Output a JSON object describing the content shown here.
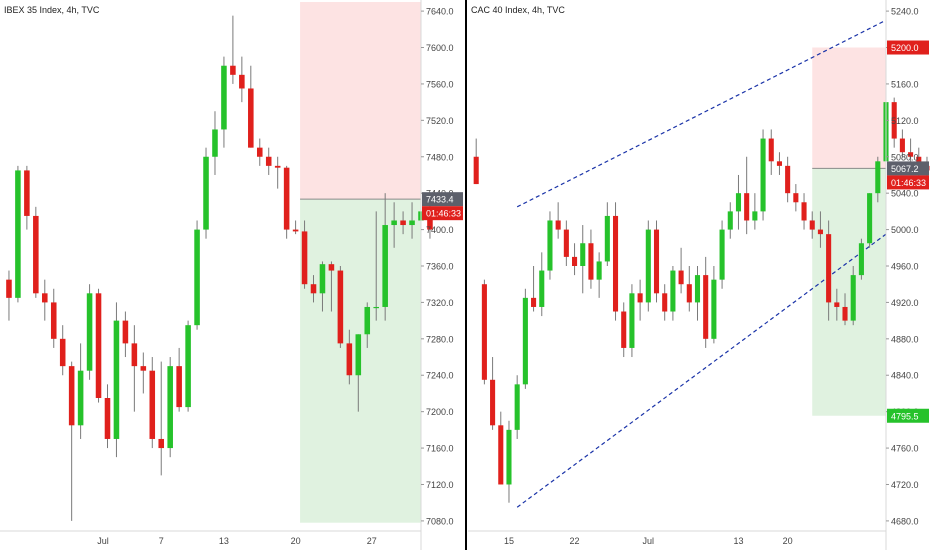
{
  "colors": {
    "up": "#26c22b",
    "down": "#e0201c",
    "wick": "#7a7a7a",
    "short_zone": "#fde3e3",
    "long_zone": "#e0f2e0",
    "channel": "#1a33a8",
    "divider": "#000000",
    "axis_text": "#444444"
  },
  "chart_data": [
    {
      "type": "candlestick",
      "title": "IBEX 35 Index, 4h, TVC",
      "ylim": [
        7070,
        7650
      ],
      "xlim": [
        -1,
        46
      ],
      "y_ticks": [
        "7080.0",
        "7120.0",
        "7160.0",
        "7200.0",
        "7240.0",
        "7280.0",
        "7320.0",
        "7360.0",
        "7400.0",
        "7440.0",
        "7480.0",
        "7520.0",
        "7560.0",
        "7600.0",
        "7640.0"
      ],
      "x_ticks": [
        {
          "label": "Jul",
          "x": 10.5
        },
        {
          "label": "7",
          "x": 17
        },
        {
          "label": "13",
          "x": 24
        },
        {
          "label": "20",
          "x": 32
        },
        {
          "label": "27",
          "x": 40.5
        }
      ],
      "candles": [
        [
          7345,
          7355,
          7300,
          7325
        ],
        [
          7325,
          7470,
          7320,
          7465
        ],
        [
          7465,
          7470,
          7400,
          7415
        ],
        [
          7415,
          7425,
          7325,
          7330
        ],
        [
          7330,
          7345,
          7300,
          7320
        ],
        [
          7320,
          7335,
          7270,
          7280
        ],
        [
          7280,
          7295,
          7240,
          7250
        ],
        [
          7250,
          7255,
          7080,
          7185
        ],
        [
          7185,
          7275,
          7170,
          7245
        ],
        [
          7245,
          7340,
          7235,
          7330
        ],
        [
          7330,
          7335,
          7210,
          7215
        ],
        [
          7215,
          7230,
          7160,
          7170
        ],
        [
          7170,
          7320,
          7150,
          7300
        ],
        [
          7300,
          7310,
          7260,
          7275
        ],
        [
          7275,
          7295,
          7200,
          7250
        ],
        [
          7250,
          7265,
          7220,
          7245
        ],
        [
          7245,
          7260,
          7160,
          7170
        ],
        [
          7170,
          7255,
          7130,
          7160
        ],
        [
          7160,
          7260,
          7150,
          7250
        ],
        [
          7250,
          7270,
          7200,
          7205
        ],
        [
          7205,
          7300,
          7200,
          7295
        ],
        [
          7295,
          7410,
          7290,
          7400
        ],
        [
          7400,
          7490,
          7390,
          7480
        ],
        [
          7480,
          7530,
          7460,
          7510
        ],
        [
          7510,
          7590,
          7490,
          7580
        ],
        [
          7580,
          7635,
          7560,
          7570
        ],
        [
          7570,
          7590,
          7540,
          7555
        ],
        [
          7555,
          7580,
          7490,
          7490
        ],
        [
          7490,
          7500,
          7470,
          7480
        ],
        [
          7480,
          7490,
          7460,
          7470
        ],
        [
          7470,
          7480,
          7445,
          7468
        ],
        [
          7468,
          7470,
          7390,
          7400
        ],
        [
          7400,
          7410,
          7395,
          7398
        ],
        [
          7398,
          7410,
          7335,
          7340
        ],
        [
          7340,
          7350,
          7320,
          7330
        ],
        [
          7330,
          7365,
          7310,
          7362
        ],
        [
          7362,
          7365,
          7310,
          7355
        ],
        [
          7355,
          7360,
          7270,
          7275
        ],
        [
          7275,
          7290,
          7230,
          7240
        ],
        [
          7240,
          7285,
          7200,
          7285
        ],
        [
          7285,
          7320,
          7270,
          7315
        ],
        [
          7315,
          7420,
          7300,
          7315
        ],
        [
          7315,
          7440,
          7300,
          7405
        ],
        [
          7405,
          7430,
          7380,
          7410
        ],
        [
          7410,
          7420,
          7395,
          7405
        ],
        [
          7405,
          7430,
          7390,
          7410
        ],
        [
          7410,
          7440,
          7400,
          7420
        ],
        [
          7420,
          7430,
          7390,
          7400
        ]
      ],
      "candles_note": "",
      "position": {
        "type": "short",
        "entry": 7433.4,
        "stop": 7650,
        "target": 7078,
        "x_start": 32.5,
        "x_end": 46
      },
      "price_label": "7433.4",
      "timer_label": "01:46:33"
    },
    {
      "type": "candlestick",
      "title": "CAC 40 Index, 4h, TVC",
      "ylim": [
        4670,
        5250
      ],
      "xlim": [
        -1,
        50
      ],
      "y_ticks": [
        "4680.0",
        "4720.0",
        "4760.0",
        "4800.0",
        "4840.0",
        "4880.0",
        "4920.0",
        "4960.0",
        "5000.0",
        "5040.0",
        "5080.0",
        "5120.0",
        "5160.0",
        "5200.0",
        "5240.0"
      ],
      "x_ticks": [
        {
          "label": "15",
          "x": 4
        },
        {
          "label": "22",
          "x": 12
        },
        {
          "label": "Jul",
          "x": 21
        },
        {
          "label": "13",
          "x": 32
        },
        {
          "label": "20",
          "x": 38
        }
      ],
      "candles": [
        [
          5080,
          5100,
          5050,
          5050
        ],
        [
          4940,
          4945,
          4830,
          4835
        ],
        [
          4835,
          4860,
          4780,
          4785
        ],
        [
          4785,
          4800,
          4720,
          4720
        ],
        [
          4720,
          4790,
          4700,
          4780
        ],
        [
          4780,
          4840,
          4770,
          4830
        ],
        [
          4830,
          4935,
          4825,
          4925
        ],
        [
          4925,
          4960,
          4910,
          4915
        ],
        [
          4915,
          4975,
          4905,
          4955
        ],
        [
          4955,
          5020,
          4945,
          5010
        ],
        [
          5010,
          5030,
          4990,
          5000
        ],
        [
          5000,
          5010,
          4960,
          4970
        ],
        [
          4970,
          4985,
          4950,
          4960
        ],
        [
          4960,
          5005,
          4930,
          4985
        ],
        [
          4985,
          5000,
          4935,
          4945
        ],
        [
          4945,
          4975,
          4925,
          4965
        ],
        [
          4965,
          5030,
          4960,
          5015
        ],
        [
          5015,
          5030,
          4900,
          4910
        ],
        [
          4910,
          4920,
          4860,
          4870
        ],
        [
          4870,
          4940,
          4860,
          4930
        ],
        [
          4930,
          4945,
          4900,
          4920
        ],
        [
          4920,
          5010,
          4910,
          5000
        ],
        [
          5000,
          5010,
          4920,
          4930
        ],
        [
          4930,
          4940,
          4900,
          4910
        ],
        [
          4910,
          4960,
          4900,
          4955
        ],
        [
          4955,
          4980,
          4930,
          4940
        ],
        [
          4940,
          4960,
          4910,
          4920
        ],
        [
          4920,
          4960,
          4900,
          4950
        ],
        [
          4950,
          4970,
          4870,
          4880
        ],
        [
          4880,
          4960,
          4875,
          4945
        ],
        [
          4945,
          5010,
          4935,
          5000
        ],
        [
          5000,
          5030,
          4990,
          5020
        ],
        [
          5020,
          5060,
          5000,
          5040
        ],
        [
          5040,
          5080,
          4995,
          5010
        ],
        [
          5010,
          5040,
          5000,
          5020
        ],
        [
          5020,
          5110,
          5010,
          5100
        ],
        [
          5100,
          5110,
          5060,
          5075
        ],
        [
          5075,
          5085,
          5060,
          5070
        ],
        [
          5070,
          5080,
          5030,
          5040
        ],
        [
          5040,
          5050,
          5020,
          5030
        ],
        [
          5030,
          5040,
          5000,
          5010
        ],
        [
          5010,
          5020,
          4990,
          5000
        ],
        [
          5000,
          5020,
          4980,
          4995
        ],
        [
          4995,
          5010,
          4900,
          4920
        ],
        [
          4920,
          4935,
          4900,
          4915
        ],
        [
          4915,
          4930,
          4895,
          4900
        ],
        [
          4900,
          4960,
          4895,
          4950
        ],
        [
          4950,
          4990,
          4945,
          4985
        ],
        [
          4985,
          5040,
          4980,
          5040
        ],
        [
          5040,
          5080,
          5030,
          5075
        ],
        [
          5075,
          5145,
          5060,
          5140
        ],
        [
          5140,
          5145,
          5090,
          5100
        ],
        [
          5100,
          5110,
          5080,
          5085
        ],
        [
          5085,
          5100,
          5065,
          5080
        ],
        [
          5080,
          5090,
          5055,
          5070
        ],
        [
          5070,
          5080,
          5055,
          5065
        ]
      ],
      "position": {
        "type": "short",
        "entry": 5067.2,
        "stop": 5200,
        "target": 4795.5,
        "x_start": 41,
        "x_end": 50
      },
      "channel": {
        "upper": [
          [
            5,
            5025
          ],
          [
            50,
            5230
          ]
        ],
        "lower": [
          [
            5,
            4695
          ],
          [
            50,
            4995
          ]
        ]
      },
      "price_label": "5067.2",
      "stop_label": "5200.0",
      "target_label": "4795.5",
      "timer_label": "01:46:33"
    }
  ]
}
